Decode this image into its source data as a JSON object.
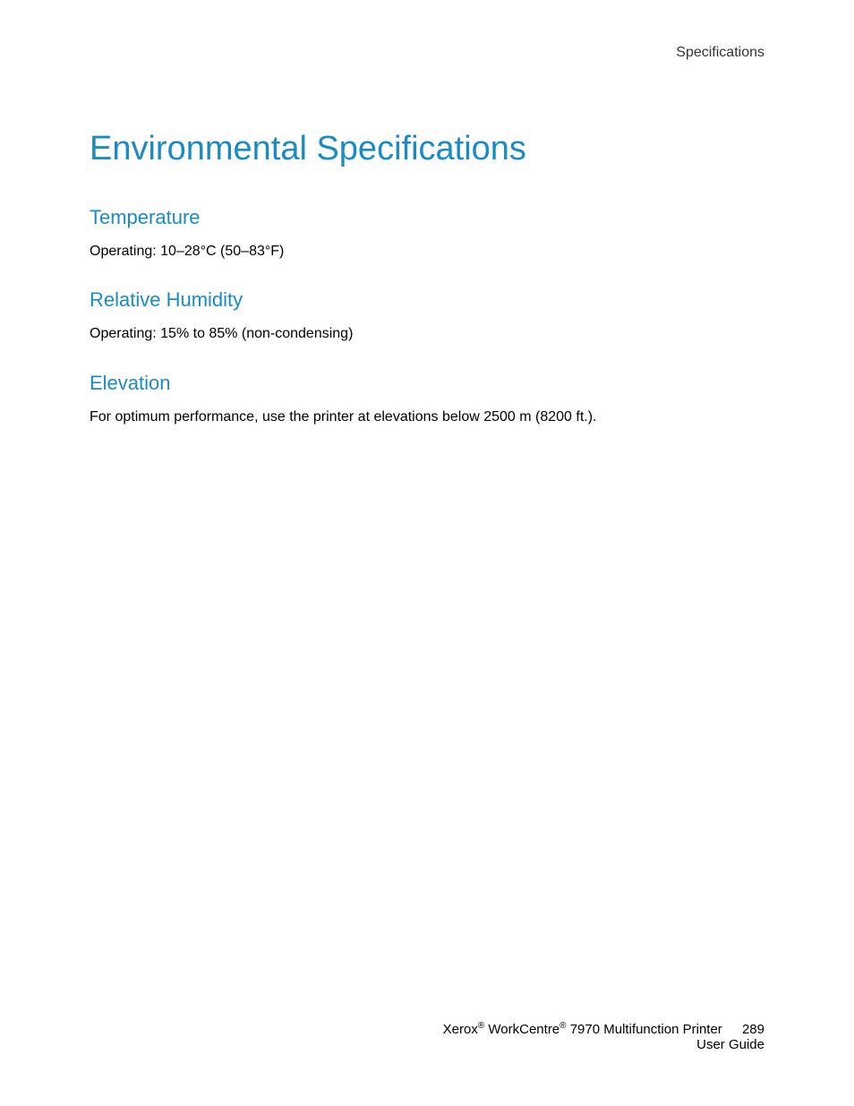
{
  "header": {
    "section_label": "Specifications"
  },
  "title": "Environmental Specifications",
  "sections": [
    {
      "heading": "Temperature",
      "body": "Operating: 10–28°C (50–83°F)"
    },
    {
      "heading": "Relative Humidity",
      "body": "Operating: 15% to 85% (non-condensing)"
    },
    {
      "heading": "Elevation",
      "body": "For optimum performance, use the printer at elevations below 2500  m (8200  ft.)."
    }
  ],
  "footer": {
    "brand1": "Xerox",
    "brand2": "WorkCentre",
    "product": " 7970 Multifunction Printer",
    "doc_type": "User Guide",
    "page_number": "289"
  },
  "colors": {
    "accent": "#1a8bc4",
    "text": "#000000",
    "header_text": "#333333",
    "background": "#ffffff"
  },
  "typography": {
    "title_fontsize": 38,
    "heading_fontsize": 22,
    "body_fontsize": 16,
    "footer_fontsize": 15
  }
}
